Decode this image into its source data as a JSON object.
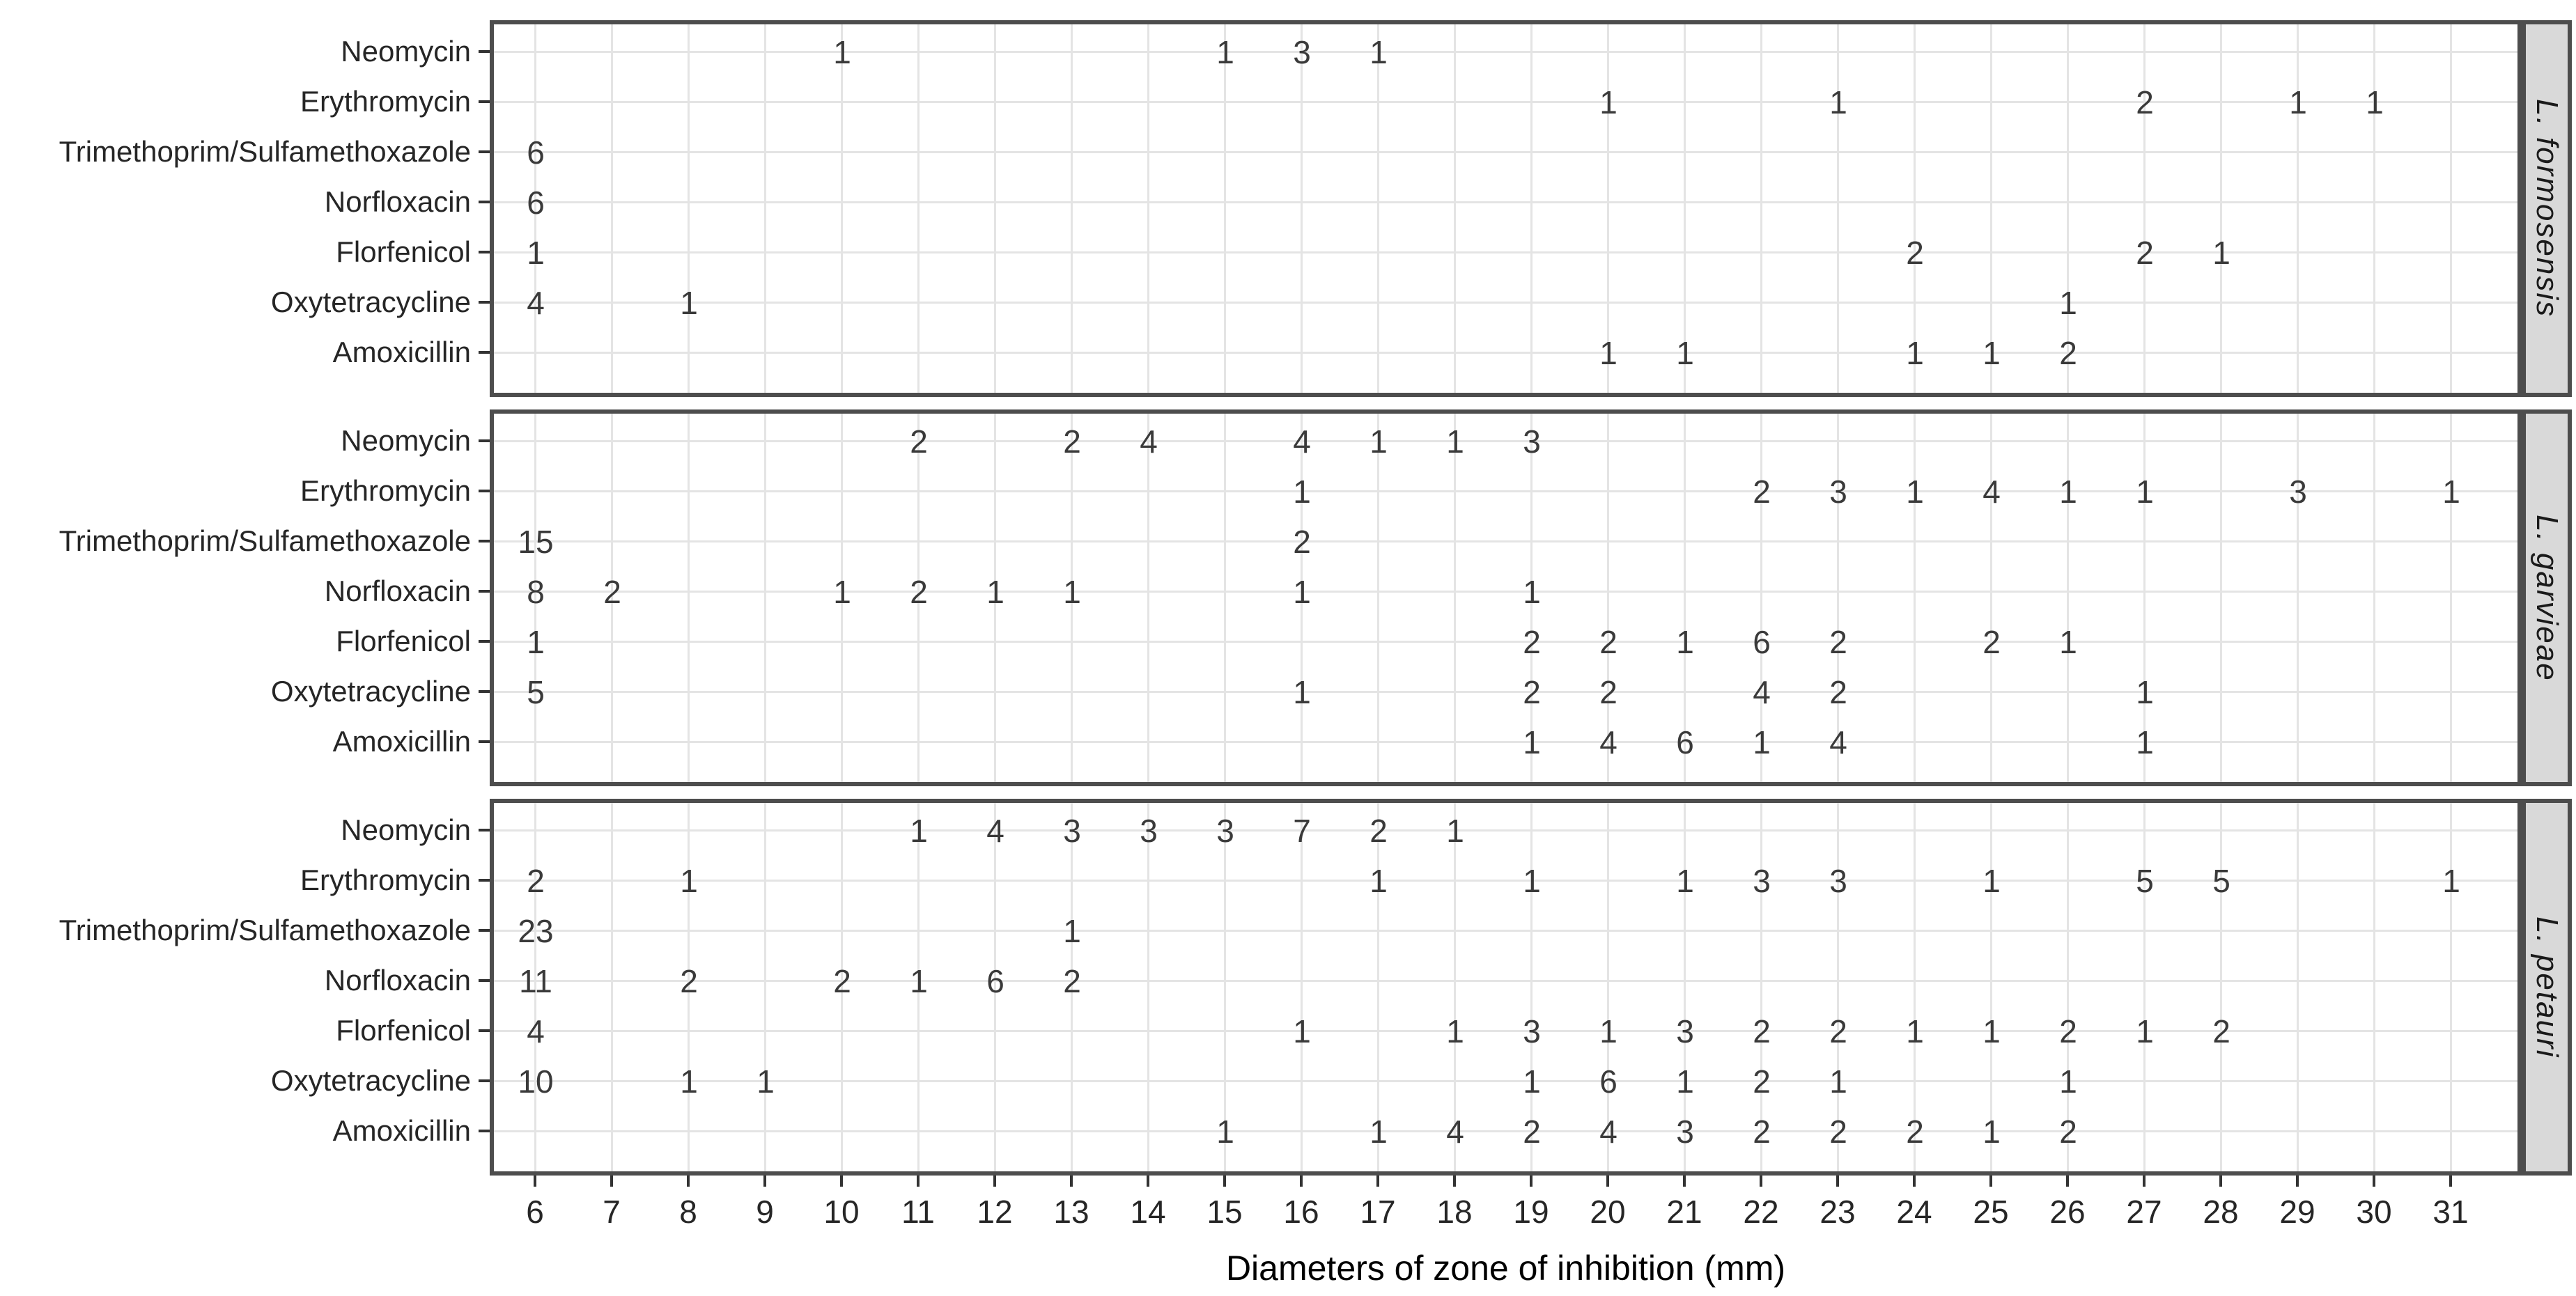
{
  "chart_data": {
    "type": "scatter",
    "subtype": "count-label-matrix",
    "title": "",
    "xlabel": "Diameters of zone of inhibition (mm)",
    "ylabel": "",
    "x_ticks": [
      6,
      7,
      8,
      9,
      10,
      11,
      12,
      13,
      14,
      15,
      16,
      17,
      18,
      19,
      20,
      21,
      22,
      23,
      24,
      25,
      26,
      27,
      28,
      29,
      30,
      31
    ],
    "xlim": [
      5.4,
      31.9
    ],
    "grid": "major-on",
    "legend": "none",
    "antibiotics": [
      "Neomycin",
      "Erythromycin",
      "Trimethoprim/Sulfamethoxazole",
      "Norfloxacin",
      "Florfenicol",
      "Oxytetracycline",
      "Amoxicillin"
    ],
    "facets": [
      {
        "species": "L. formosensis",
        "rows": [
          [
            [
              10,
              1
            ],
            [
              15,
              1
            ],
            [
              16,
              3
            ],
            [
              17,
              1
            ]
          ],
          [
            [
              20,
              1
            ],
            [
              23,
              1
            ],
            [
              27,
              2
            ],
            [
              29,
              1
            ],
            [
              30,
              1
            ]
          ],
          [
            [
              6,
              6
            ]
          ],
          [
            [
              6,
              6
            ]
          ],
          [
            [
              6,
              1
            ],
            [
              24,
              2
            ],
            [
              27,
              2
            ],
            [
              28,
              1
            ]
          ],
          [
            [
              6,
              4
            ],
            [
              8,
              1
            ],
            [
              26,
              1
            ]
          ],
          [
            [
              20,
              1
            ],
            [
              21,
              1
            ],
            [
              24,
              1
            ],
            [
              25,
              1
            ],
            [
              26,
              2
            ]
          ]
        ]
      },
      {
        "species": "L. garvieae",
        "rows": [
          [
            [
              11,
              2
            ],
            [
              13,
              2
            ],
            [
              14,
              4
            ],
            [
              16,
              4
            ],
            [
              17,
              1
            ],
            [
              18,
              1
            ],
            [
              19,
              3
            ]
          ],
          [
            [
              16,
              1
            ],
            [
              22,
              2
            ],
            [
              23,
              3
            ],
            [
              24,
              1
            ],
            [
              25,
              4
            ],
            [
              26,
              1
            ],
            [
              27,
              1
            ],
            [
              29,
              3
            ],
            [
              31,
              1
            ]
          ],
          [
            [
              6,
              15
            ],
            [
              16,
              2
            ]
          ],
          [
            [
              6,
              8
            ],
            [
              7,
              2
            ],
            [
              10,
              1
            ],
            [
              11,
              2
            ],
            [
              12,
              1
            ],
            [
              13,
              1
            ],
            [
              16,
              1
            ],
            [
              19,
              1
            ]
          ],
          [
            [
              6,
              1
            ],
            [
              19,
              2
            ],
            [
              20,
              2
            ],
            [
              21,
              1
            ],
            [
              22,
              6
            ],
            [
              23,
              2
            ],
            [
              25,
              2
            ],
            [
              26,
              1
            ]
          ],
          [
            [
              6,
              5
            ],
            [
              16,
              1
            ],
            [
              19,
              2
            ],
            [
              20,
              2
            ],
            [
              22,
              4
            ],
            [
              23,
              2
            ],
            [
              27,
              1
            ]
          ],
          [
            [
              19,
              1
            ],
            [
              20,
              4
            ],
            [
              21,
              6
            ],
            [
              22,
              1
            ],
            [
              23,
              4
            ],
            [
              27,
              1
            ]
          ]
        ]
      },
      {
        "species": "L. petauri",
        "rows": [
          [
            [
              11,
              1
            ],
            [
              12,
              4
            ],
            [
              13,
              3
            ],
            [
              14,
              3
            ],
            [
              15,
              3
            ],
            [
              16,
              7
            ],
            [
              17,
              2
            ],
            [
              18,
              1
            ]
          ],
          [
            [
              6,
              2
            ],
            [
              8,
              1
            ],
            [
              17,
              1
            ],
            [
              19,
              1
            ],
            [
              21,
              1
            ],
            [
              22,
              3
            ],
            [
              23,
              3
            ],
            [
              25,
              1
            ],
            [
              27,
              5
            ],
            [
              28,
              5
            ],
            [
              31,
              1
            ]
          ],
          [
            [
              6,
              23
            ],
            [
              13,
              1
            ]
          ],
          [
            [
              6,
              11
            ],
            [
              8,
              2
            ],
            [
              10,
              2
            ],
            [
              11,
              1
            ],
            [
              12,
              6
            ],
            [
              13,
              2
            ]
          ],
          [
            [
              6,
              4
            ],
            [
              16,
              1
            ],
            [
              18,
              1
            ],
            [
              19,
              3
            ],
            [
              20,
              1
            ],
            [
              21,
              3
            ],
            [
              22,
              2
            ],
            [
              23,
              2
            ],
            [
              24,
              1
            ],
            [
              25,
              1
            ],
            [
              26,
              2
            ],
            [
              27,
              1
            ],
            [
              28,
              2
            ]
          ],
          [
            [
              6,
              10
            ],
            [
              8,
              1
            ],
            [
              9,
              1
            ],
            [
              19,
              1
            ],
            [
              20,
              6
            ],
            [
              21,
              1
            ],
            [
              22,
              2
            ],
            [
              23,
              1
            ],
            [
              26,
              1
            ]
          ],
          [
            [
              15,
              1
            ],
            [
              17,
              1
            ],
            [
              18,
              4
            ],
            [
              19,
              2
            ],
            [
              20,
              4
            ],
            [
              21,
              3
            ],
            [
              22,
              2
            ],
            [
              23,
              2
            ],
            [
              24,
              2
            ],
            [
              25,
              1
            ],
            [
              26,
              2
            ]
          ]
        ]
      }
    ],
    "colors": {
      "grid": "#e4e4e4",
      "panel_border": "#4d4d4d",
      "strip_background": "#d9d9d9",
      "count_text": "#3a3a3a",
      "axis_text": "#262626",
      "background": "#ffffff"
    }
  }
}
